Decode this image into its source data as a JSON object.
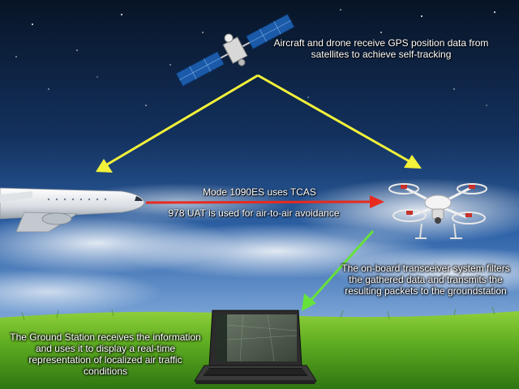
{
  "labels": {
    "satellite_caption": "Aircraft and drone receive GPS position data from satellites to achieve self-tracking",
    "mode_1090": "Mode 1090ES uses TCAS",
    "uat_978": "978 UAT is used for air-to-air avoidance",
    "transceiver_caption": "The on-board transceiver system filters the gathered data and transmits the resulting packets to the groundstation",
    "ground_station_caption": "The Ground Station receives the information and uses it to display a real-time representation of localized air traffic conditions"
  },
  "colors": {
    "gps_arrow": "#f2f23a",
    "transponder_arrow": "#e82a1e",
    "downlink_arrow": "#66e23a",
    "sky_top": "#081426",
    "sky_mid": "#1e4a86",
    "sky_low": "#86aede",
    "grass": "#4f9a1e"
  },
  "icons": {
    "satellite": "satellite-icon",
    "airplane": "airliner-icon",
    "drone": "quadcopter-drone-icon",
    "laptop": "laptop-ground-station-icon"
  }
}
